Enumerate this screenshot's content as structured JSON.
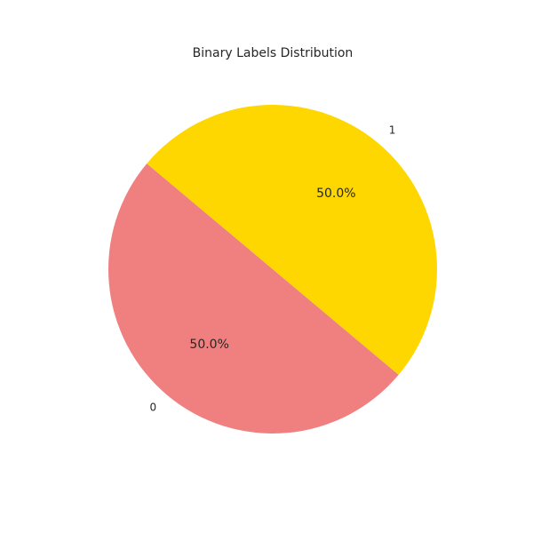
{
  "chart_data": {
    "type": "pie",
    "title": "Binary Labels Distribution",
    "categories": [
      "0",
      "1"
    ],
    "values": [
      50,
      50
    ],
    "percent_labels": [
      "50.0%",
      "50.0%"
    ],
    "colors": [
      "#F08080",
      "#FFD700"
    ],
    "start_angle_deg": 140,
    "legend": "none"
  }
}
